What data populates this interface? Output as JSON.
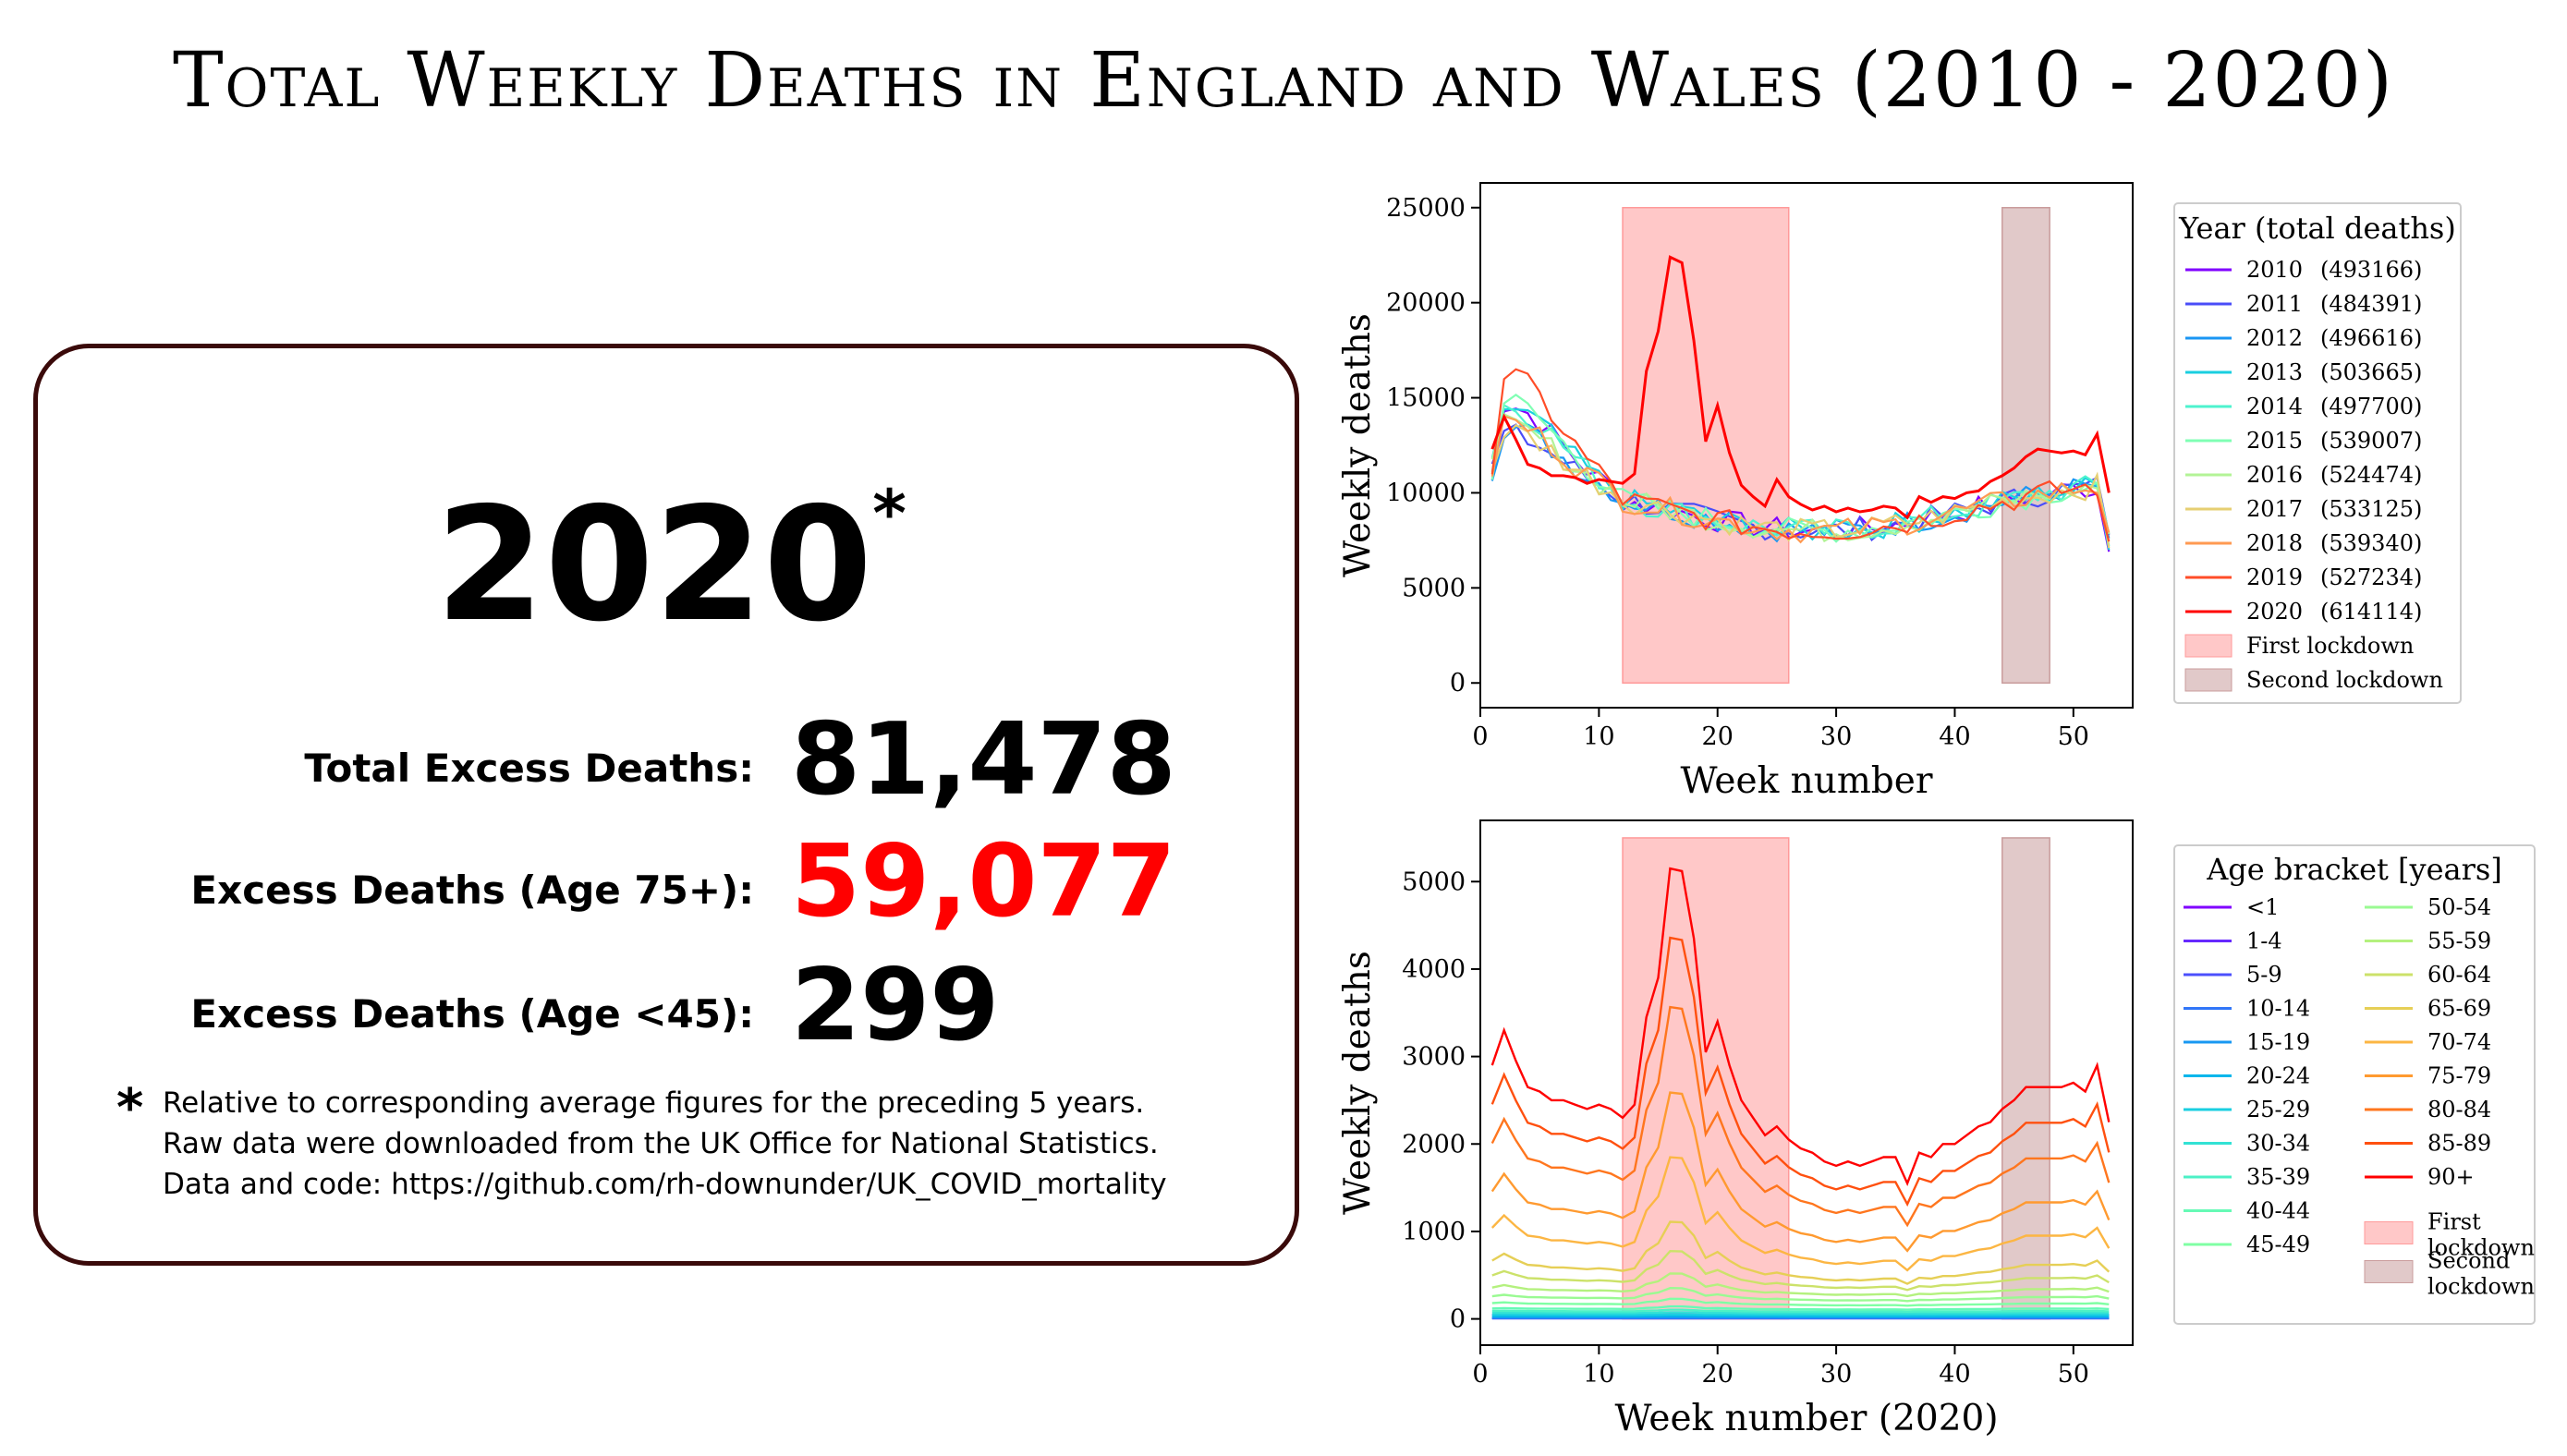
{
  "title": "Total Weekly Deaths in England and Wales (2010 - 2020)",
  "stats": {
    "year": "2020",
    "asterisk": "*",
    "total_label": "Total Excess Deaths:",
    "total_value": "81,478",
    "age75_label": "Excess Deaths (Age 75+):",
    "age75_value": "59,077",
    "age45_label": "Excess Deaths (Age <45):",
    "age45_value": "299",
    "highlight_color": "#ff0000",
    "footnote_star": "*",
    "footnote_lines": [
      "Relative to corresponding average figures for the preceding 5 years.",
      "Raw data were downloaded from the UK Office for National Statistics.",
      "Data and code: https://github.com/rh-downunder/UK_COVID_mortality"
    ]
  },
  "chart_data": [
    {
      "type": "line",
      "xlabel": "Week number",
      "ylabel": "Weekly deaths",
      "xlim": [
        0,
        55
      ],
      "ylim": [
        -1300,
        26300
      ],
      "xticks": [
        0,
        10,
        20,
        30,
        40,
        50
      ],
      "yticks": [
        0,
        5000,
        10000,
        15000,
        20000,
        25000
      ],
      "legend_title": "Year (total deaths)",
      "legend_placement": "outside-right",
      "shaded_regions": [
        {
          "name": "First lockdown",
          "x": [
            12,
            26
          ],
          "y": [
            0,
            25000
          ],
          "color": "#ff9a9a"
        },
        {
          "name": "Second lockdown",
          "x": [
            44,
            48
          ],
          "y": [
            0,
            25000
          ],
          "color": "#c99c9c"
        }
      ],
      "series": [
        {
          "name": "2010",
          "total": "(493166)",
          "color": "#8000ff"
        },
        {
          "name": "2011",
          "total": "(484391)",
          "color": "#4a4df8"
        },
        {
          "name": "2012",
          "total": "(496616)",
          "color": "#1996f3"
        },
        {
          "name": "2013",
          "total": "(503665)",
          "color": "#1acfe0"
        },
        {
          "name": "2014",
          "total": "(497700)",
          "color": "#4df3ce"
        },
        {
          "name": "2015",
          "total": "(539007)",
          "color": "#80ffb4"
        },
        {
          "name": "2016",
          "total": "(524474)",
          "color": "#b3f396"
        },
        {
          "name": "2017",
          "total": "(533125)",
          "color": "#e6cf72"
        },
        {
          "name": "2018",
          "total": "(539340)",
          "color": "#ff9a52"
        },
        {
          "name": "2019",
          "total": "(527234)",
          "color": "#ff4d28"
        },
        {
          "name": "2020",
          "total": "(614114)",
          "color": "#ff0000"
        }
      ],
      "year_2020_values": [
        12300,
        14000,
        12800,
        11500,
        11300,
        10900,
        10900,
        10800,
        10500,
        10700,
        10600,
        10500,
        11000,
        16400,
        18500,
        22400,
        22100,
        18000,
        12700,
        14600,
        12100,
        10400,
        9800,
        9300,
        10700,
        9800,
        9400,
        9100,
        9300,
        9000,
        9200,
        9000,
        9100,
        9300,
        9200,
        8700,
        9800,
        9500,
        9800,
        9700,
        10000,
        10100,
        10600,
        10900,
        11300,
        11900,
        12300,
        12200,
        12100,
        12200,
        12000,
        13100,
        10000
      ]
    },
    {
      "type": "line",
      "xlabel": "Week number (2020)",
      "ylabel": "Weekly deaths",
      "xlim": [
        0,
        55
      ],
      "ylim": [
        -300,
        5700
      ],
      "xticks": [
        0,
        10,
        20,
        30,
        40,
        50
      ],
      "yticks": [
        0,
        1000,
        2000,
        3000,
        4000,
        5000
      ],
      "legend_title": "Age bracket [years]",
      "legend_placement": "outside-right",
      "shaded_regions": [
        {
          "name": "First lockdown",
          "x": [
            12,
            26
          ],
          "y": [
            0,
            5500
          ],
          "color": "#ff9a9a"
        },
        {
          "name": "Second lockdown",
          "x": [
            44,
            48
          ],
          "y": [
            0,
            5500
          ],
          "color": "#c99c9c"
        }
      ],
      "legend_shade_labels": [
        [
          "First",
          "lockdown"
        ],
        [
          "Second",
          "lockdown"
        ]
      ],
      "series": [
        {
          "name": "<1",
          "color": "#8000ff",
          "base": 45
        },
        {
          "name": "1-4",
          "color": "#6629fe",
          "base": 8
        },
        {
          "name": "5-9",
          "color": "#4c50fc",
          "base": 5
        },
        {
          "name": "10-14",
          "color": "#3176f8",
          "base": 8
        },
        {
          "name": "15-19",
          "color": "#1898f2",
          "base": 20
        },
        {
          "name": "20-24",
          "color": "#02b6eb",
          "base": 30
        },
        {
          "name": "25-29",
          "color": "#1acfe0",
          "base": 45
        },
        {
          "name": "30-34",
          "color": "#33e2d4",
          "base": 65
        },
        {
          "name": "35-39",
          "color": "#4cf1c6",
          "base": 85
        },
        {
          "name": "40-44",
          "color": "#66fab6",
          "base": 110
        },
        {
          "name": "45-49",
          "color": "#80ffa4",
          "base": 160
        },
        {
          "name": "50-54",
          "color": "#9afa92",
          "base": 220
        },
        {
          "name": "55-59",
          "color": "#b4f17e",
          "base": 290
        },
        {
          "name": "60-64",
          "color": "#cce26a",
          "base": 380
        },
        {
          "name": "65-69",
          "color": "#e6cf56",
          "base": 480
        },
        {
          "name": "70-74",
          "color": "#fcb643",
          "base": 700
        },
        {
          "name": "75-79",
          "color": "#ff9a30",
          "base": 980
        },
        {
          "name": "80-84",
          "color": "#ff761e",
          "base": 1350
        },
        {
          "name": "85-89",
          "color": "#ff500f",
          "base": 1650
        },
        {
          "name": "90+",
          "color": "#ff0000",
          "base": 1950
        }
      ],
      "age_90plus_values": [
        2900,
        3300,
        2950,
        2650,
        2600,
        2500,
        2500,
        2450,
        2400,
        2450,
        2400,
        2300,
        2450,
        3450,
        3900,
        5150,
        5120,
        4350,
        3050,
        3400,
        2900,
        2500,
        2300,
        2100,
        2200,
        2050,
        1950,
        1900,
        1800,
        1750,
        1800,
        1750,
        1800,
        1850,
        1850,
        1550,
        1900,
        1850,
        2000,
        2000,
        2100,
        2200,
        2250,
        2400,
        2500,
        2650,
        2650,
        2650,
        2650,
        2700,
        2600,
        2900,
        2250
      ]
    }
  ]
}
